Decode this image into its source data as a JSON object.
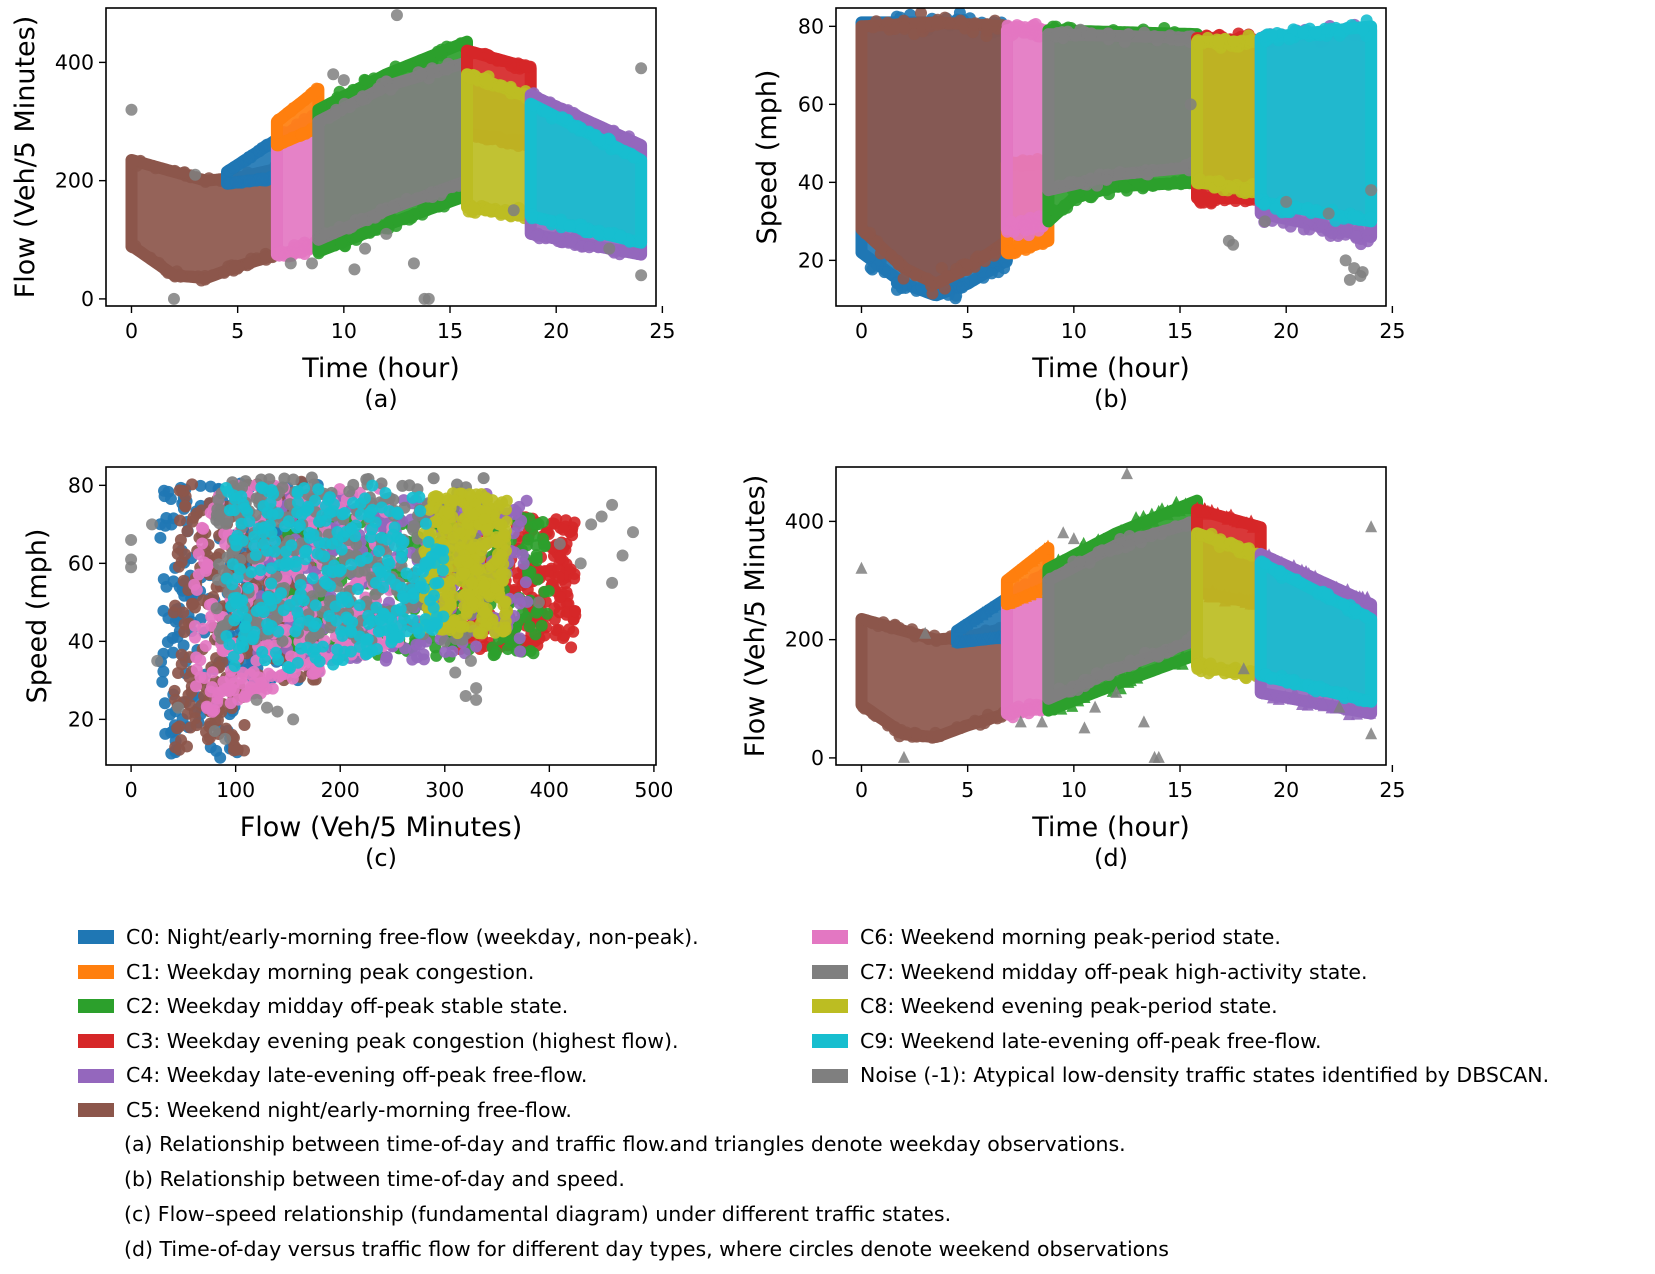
{
  "colors": {
    "C0": "#1f77b4",
    "C1": "#ff7f0e",
    "C2": "#2ca02c",
    "C3": "#d62728",
    "C4": "#9467bd",
    "C5": "#8c564b",
    "C6": "#e377c2",
    "C7": "#7f7f7f",
    "C8": "#bcbd22",
    "C9": "#17becf",
    "noise": "#7f7f7f"
  },
  "chart_data": [
    {
      "type": "scatter",
      "panel_label": "(a)",
      "xlabel": "Time (hour)",
      "ylabel": "Flow (Veh/5 Minutes)",
      "xlim": [
        -1.2,
        24.7
      ],
      "ylim": [
        -12,
        492
      ],
      "xticks": [
        0,
        5,
        10,
        15,
        20,
        25
      ],
      "yticks": [
        0,
        200,
        400
      ],
      "series": [
        {
          "name": "C5",
          "x_range": [
            0,
            6.85
          ],
          "band_lo": [
            [
              0,
              90
            ],
            [
              2,
              40
            ],
            [
              3.5,
              35
            ],
            [
              5,
              55
            ],
            [
              6.85,
              75
            ]
          ],
          "band_hi": [
            [
              0,
              235
            ],
            [
              2,
              215
            ],
            [
              3.5,
              200
            ],
            [
              5,
              205
            ],
            [
              6.85,
              220
            ]
          ]
        },
        {
          "name": "C0",
          "x_range": [
            4.5,
            6.85
          ],
          "band_lo": [
            [
              4.5,
              195
            ],
            [
              6.85,
              205
            ]
          ],
          "band_hi": [
            [
              4.5,
              215
            ],
            [
              6.85,
              270
            ]
          ]
        },
        {
          "name": "C6",
          "x_range": [
            6.85,
            8.8
          ],
          "band_lo": [
            [
              6.85,
              75
            ],
            [
              8.8,
              90
            ]
          ],
          "band_hi": [
            [
              6.85,
              270
            ],
            [
              8.8,
              310
            ]
          ]
        },
        {
          "name": "C1",
          "x_range": [
            6.85,
            8.8
          ],
          "band_lo": [
            [
              6.85,
              260
            ],
            [
              8.8,
              290
            ]
          ],
          "band_hi": [
            [
              6.85,
              300
            ],
            [
              8.8,
              355
            ]
          ]
        },
        {
          "name": "C2",
          "x_range": [
            8.8,
            15.8
          ],
          "band_lo": [
            [
              8.8,
              80
            ],
            [
              12,
              125
            ],
            [
              15.8,
              175
            ]
          ],
          "band_hi": [
            [
              8.8,
              320
            ],
            [
              12,
              380
            ],
            [
              15.8,
              435
            ]
          ]
        },
        {
          "name": "C7",
          "x_range": [
            8.8,
            15.8
          ],
          "band_lo": [
            [
              8.8,
              100
            ],
            [
              12,
              150
            ],
            [
              15.8,
              200
            ]
          ],
          "band_hi": [
            [
              8.8,
              300
            ],
            [
              12,
              360
            ],
            [
              15.8,
              400
            ]
          ]
        },
        {
          "name": "C3",
          "x_range": [
            15.8,
            18.8
          ],
          "band_lo": [
            [
              15.8,
              280
            ],
            [
              18.8,
              260
            ]
          ],
          "band_hi": [
            [
              15.8,
              420
            ],
            [
              18.8,
              390
            ]
          ]
        },
        {
          "name": "C8",
          "x_range": [
            15.8,
            18.8
          ],
          "band_lo": [
            [
              15.8,
              155
            ],
            [
              18.8,
              140
            ]
          ],
          "band_hi": [
            [
              15.8,
              380
            ],
            [
              18.8,
              340
            ]
          ]
        },
        {
          "name": "C4",
          "x_range": [
            18.8,
            24
          ],
          "band_lo": [
            [
              18.8,
              110
            ],
            [
              24,
              75
            ]
          ],
          "band_hi": [
            [
              18.8,
              345
            ],
            [
              24,
              260
            ]
          ]
        },
        {
          "name": "C9",
          "x_range": [
            18.8,
            24
          ],
          "band_lo": [
            [
              18.8,
              140
            ],
            [
              24,
              95
            ]
          ],
          "band_hi": [
            [
              18.8,
              330
            ],
            [
              24,
              235
            ]
          ]
        }
      ],
      "noise_points": [
        [
          0,
          320
        ],
        [
          2,
          0
        ],
        [
          3,
          210
        ],
        [
          10.5,
          50
        ],
        [
          12,
          110
        ],
        [
          12.5,
          480
        ],
        [
          13.3,
          60
        ],
        [
          13.8,
          0
        ],
        [
          14,
          0
        ],
        [
          11,
          85
        ],
        [
          8.5,
          60
        ],
        [
          18,
          150
        ],
        [
          22.5,
          85
        ],
        [
          24,
          390
        ],
        [
          24,
          40
        ],
        [
          10,
          370
        ],
        [
          9.5,
          380
        ],
        [
          7.5,
          60
        ]
      ]
    },
    {
      "type": "scatter",
      "panel_label": "(b)",
      "xlabel": "Time (hour)",
      "ylabel": "Speed (mph)",
      "xlim": [
        -1.2,
        24.7
      ],
      "ylim": [
        8.3,
        84.7
      ],
      "xticks": [
        0,
        5,
        10,
        15,
        20,
        25
      ],
      "yticks": [
        20,
        40,
        60,
        80
      ],
      "series": [
        {
          "name": "C0",
          "x_range": [
            0,
            6.85
          ],
          "band_lo": [
            [
              0,
              22
            ],
            [
              2,
              14
            ],
            [
              3.5,
              11
            ],
            [
              5,
              14
            ],
            [
              6.85,
              20
            ]
          ],
          "band_hi": [
            [
              0,
              81
            ],
            [
              3.5,
              81
            ],
            [
              6.85,
              80
            ]
          ]
        },
        {
          "name": "C5",
          "x_range": [
            0,
            6.85
          ],
          "band_lo": [
            [
              0,
              28
            ],
            [
              2,
              18
            ],
            [
              3.5,
              14
            ],
            [
              5,
              18
            ],
            [
              6.85,
              25
            ]
          ],
          "band_hi": [
            [
              0,
              80
            ],
            [
              3.5,
              81
            ],
            [
              6.85,
              80
            ]
          ]
        },
        {
          "name": "C1",
          "x_range": [
            6.85,
            8.8
          ],
          "band_lo": [
            [
              6.85,
              22
            ],
            [
              8.8,
              25
            ]
          ],
          "band_hi": [
            [
              6.85,
              45
            ],
            [
              8.8,
              45
            ]
          ]
        },
        {
          "name": "C6",
          "x_range": [
            6.85,
            8.8
          ],
          "band_lo": [
            [
              6.85,
              28
            ],
            [
              8.8,
              30
            ]
          ],
          "band_hi": [
            [
              6.85,
              79
            ],
            [
              8.8,
              79
            ]
          ]
        },
        {
          "name": "C2",
          "x_range": [
            8.8,
            15.8
          ],
          "band_lo": [
            [
              8.8,
              30
            ],
            [
              10,
              36
            ],
            [
              12,
              39
            ],
            [
              15.8,
              40
            ]
          ],
          "band_hi": [
            [
              8.8,
              79
            ],
            [
              15.8,
              78
            ]
          ]
        },
        {
          "name": "C7",
          "x_range": [
            8.8,
            15.8
          ],
          "band_lo": [
            [
              8.8,
              38
            ],
            [
              12,
              42
            ],
            [
              15.8,
              44
            ]
          ],
          "band_hi": [
            [
              8.8,
              78
            ],
            [
              15.8,
              77
            ]
          ]
        },
        {
          "name": "C3",
          "x_range": [
            15.8,
            18.8
          ],
          "band_lo": [
            [
              15.8,
              36
            ],
            [
              18.8,
              36
            ]
          ],
          "band_hi": [
            [
              15.8,
              77
            ],
            [
              18.8,
              76
            ]
          ]
        },
        {
          "name": "C8",
          "x_range": [
            15.8,
            18.8
          ],
          "band_lo": [
            [
              15.8,
              40
            ],
            [
              18.8,
              38
            ]
          ],
          "band_hi": [
            [
              15.8,
              76
            ],
            [
              18.8,
              76
            ]
          ]
        },
        {
          "name": "C4",
          "x_range": [
            18.8,
            24
          ],
          "band_lo": [
            [
              18.8,
              32
            ],
            [
              24,
              26
            ]
          ],
          "band_hi": [
            [
              18.8,
              77
            ],
            [
              24,
              79
            ]
          ]
        },
        {
          "name": "C9",
          "x_range": [
            18.8,
            24
          ],
          "band_lo": [
            [
              18.8,
              35
            ],
            [
              24,
              30
            ]
          ],
          "band_hi": [
            [
              18.8,
              77
            ],
            [
              24,
              80
            ]
          ]
        }
      ],
      "noise_points": [
        [
          17.3,
          25
        ],
        [
          17.5,
          24
        ],
        [
          19,
          30
        ],
        [
          20,
          35
        ],
        [
          22,
          32
        ],
        [
          22.8,
          20
        ],
        [
          23.2,
          18
        ],
        [
          23.5,
          16
        ],
        [
          23,
          15
        ],
        [
          23.6,
          17
        ],
        [
          24,
          38
        ],
        [
          15.5,
          60
        ]
      ]
    },
    {
      "type": "scatter",
      "panel_label": "(c)",
      "xlabel": "Flow (Veh/5 Minutes)",
      "ylabel": "Speed (mph)",
      "xlim": [
        -24,
        502
      ],
      "ylim": [
        8.3,
        84.7
      ],
      "xticks": [
        0,
        100,
        200,
        300,
        400,
        500
      ],
      "yticks": [
        20,
        40,
        60,
        80
      ],
      "noise_points": [
        [
          0,
          66
        ],
        [
          0,
          61
        ],
        [
          0,
          59
        ],
        [
          20,
          70
        ],
        [
          25,
          35
        ],
        [
          45,
          23
        ],
        [
          80,
          17
        ],
        [
          90,
          15
        ],
        [
          120,
          25
        ],
        [
          130,
          23
        ],
        [
          140,
          22
        ],
        [
          155,
          20
        ],
        [
          300,
          40
        ],
        [
          310,
          32
        ],
        [
          320,
          26
        ],
        [
          325,
          35
        ],
        [
          330,
          28
        ],
        [
          330,
          25
        ],
        [
          440,
          70
        ],
        [
          450,
          72
        ],
        [
          460,
          75
        ],
        [
          480,
          68
        ],
        [
          460,
          55
        ],
        [
          470,
          62
        ],
        [
          430,
          60
        ],
        [
          410,
          65
        ],
        [
          390,
          50
        ]
      ]
    },
    {
      "type": "scatter",
      "panel_label": "(d)",
      "xlabel": "Time (hour)",
      "ylabel": "Flow (Veh/5 Minutes)",
      "xlim": [
        -1.2,
        24.7
      ],
      "ylim": [
        -12,
        492
      ],
      "xticks": [
        0,
        5,
        10,
        15,
        20,
        25
      ],
      "yticks": [
        0,
        200,
        400
      ],
      "markers": {
        "weekend": "circle",
        "weekday": "triangle"
      },
      "noise_points": [
        [
          0,
          320
        ],
        [
          2,
          0
        ],
        [
          3,
          210
        ],
        [
          10.5,
          50
        ],
        [
          12,
          110
        ],
        [
          12.5,
          480
        ],
        [
          13.3,
          60
        ],
        [
          13.8,
          0
        ],
        [
          14,
          0
        ],
        [
          11,
          85
        ],
        [
          8.5,
          60
        ],
        [
          18,
          150
        ],
        [
          22.5,
          85
        ],
        [
          24,
          390
        ],
        [
          24,
          40
        ],
        [
          10,
          370
        ],
        [
          9.5,
          380
        ],
        [
          7.5,
          60
        ]
      ]
    }
  ],
  "legend": {
    "left": [
      {
        "key": "C0",
        "label": "C0: Night/early-morning free-flow (weekday, non-peak)."
      },
      {
        "key": "C1",
        "label": "C1: Weekday morning peak congestion."
      },
      {
        "key": "C2",
        "label": "C2: Weekday midday off-peak stable state."
      },
      {
        "key": "C3",
        "label": "C3: Weekday evening peak congestion (highest flow)."
      },
      {
        "key": "C4",
        "label": "C4: Weekday late-evening off-peak free-flow."
      },
      {
        "key": "C5",
        "label": "C5: Weekend night/early-morning free-flow."
      }
    ],
    "right": [
      {
        "key": "C6",
        "label": "C6: Weekend morning peak-period state."
      },
      {
        "key": "C7",
        "label": "C7: Weekend midday off-peak high-activity state."
      },
      {
        "key": "C8",
        "label": "C8: Weekend evening peak-period state."
      },
      {
        "key": "C9",
        "label": "C9: Weekend late-evening off-peak free-flow."
      },
      {
        "key": "noise",
        "label": "Noise (-1): Atypical low-density traffic states identified by DBSCAN."
      }
    ]
  },
  "captions": [
    "(a) Relationship between time-of-day and traffic flow.and triangles denote weekday observations.",
    "(b) Relationship between time-of-day and speed.",
    "(c) Flow–speed relationship (fundamental diagram) under different traffic states.",
    "(d) Time-of-day versus traffic flow for different day types, where circles denote weekend observations"
  ]
}
